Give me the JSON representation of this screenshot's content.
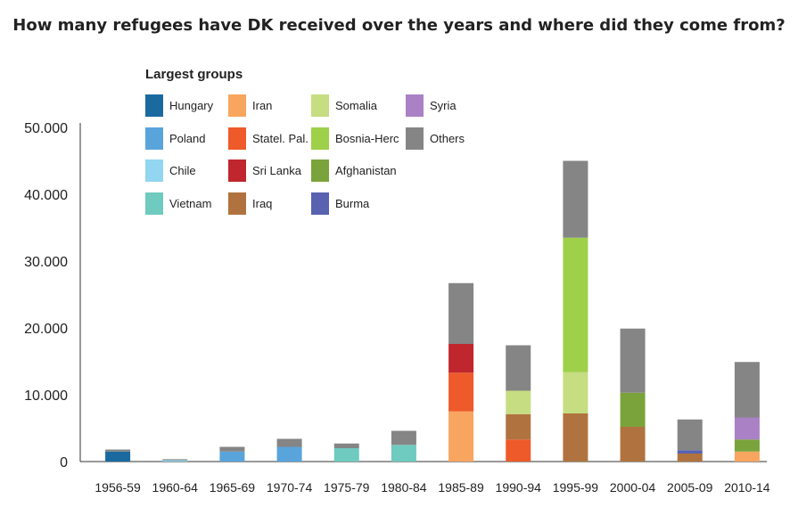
{
  "title": "How many refugees have DK received over the years and where did they come from?",
  "chart_data": {
    "type": "bar",
    "stacked": true,
    "categories": [
      "1956-59",
      "1960-64",
      "1965-69",
      "1970-74",
      "1975-79",
      "1980-84",
      "1985-89",
      "1990-94",
      "1995-99",
      "2000-04",
      "2005-09",
      "2010-14"
    ],
    "y_ticks": [
      "0",
      "10.000",
      "20.000",
      "30.000",
      "40.000",
      "50.000"
    ],
    "ylim": [
      0,
      50000
    ],
    "legend_title": "Largest groups",
    "series": [
      {
        "name": "Hungary",
        "color": "#1a6aa0",
        "values": [
          1500,
          0,
          0,
          0,
          0,
          0,
          0,
          0,
          0,
          0,
          0,
          0
        ]
      },
      {
        "name": "Poland",
        "color": "#5aa4dc",
        "values": [
          0,
          0,
          1500,
          2200,
          0,
          0,
          0,
          0,
          0,
          0,
          0,
          0
        ]
      },
      {
        "name": "Chile",
        "color": "#92d6f0",
        "values": [
          0,
          200,
          0,
          0,
          0,
          0,
          0,
          0,
          0,
          0,
          0,
          0
        ]
      },
      {
        "name": "Vietnam",
        "color": "#6fcabf",
        "values": [
          0,
          0,
          0,
          0,
          2000,
          2500,
          0,
          0,
          0,
          0,
          0,
          0
        ]
      },
      {
        "name": "Iran",
        "color": "#f8a55f",
        "values": [
          0,
          0,
          0,
          0,
          0,
          0,
          7500,
          0,
          0,
          0,
          0,
          1500
        ]
      },
      {
        "name": "Statel. Pal.",
        "color": "#ee5a2a",
        "values": [
          0,
          0,
          0,
          0,
          0,
          0,
          5800,
          3300,
          0,
          0,
          0,
          0
        ]
      },
      {
        "name": "Sri Lanka",
        "color": "#c0262d",
        "values": [
          0,
          0,
          0,
          0,
          0,
          0,
          4300,
          0,
          0,
          0,
          0,
          0
        ]
      },
      {
        "name": "Iraq",
        "color": "#b0733f",
        "values": [
          0,
          0,
          0,
          0,
          0,
          0,
          0,
          3800,
          7200,
          5200,
          1200,
          0
        ]
      },
      {
        "name": "Somalia",
        "color": "#c6dd82",
        "values": [
          0,
          0,
          0,
          0,
          0,
          0,
          0,
          3500,
          6200,
          0,
          0,
          0
        ]
      },
      {
        "name": "Bosnia-Herc",
        "color": "#9fd04a",
        "values": [
          0,
          0,
          0,
          0,
          0,
          0,
          0,
          0,
          20100,
          0,
          0,
          0
        ]
      },
      {
        "name": "Afghanistan",
        "color": "#7aa33c",
        "values": [
          0,
          0,
          0,
          0,
          0,
          0,
          0,
          0,
          0,
          5100,
          0,
          1800
        ]
      },
      {
        "name": "Burma",
        "color": "#5862b0",
        "values": [
          0,
          0,
          0,
          0,
          0,
          0,
          0,
          0,
          0,
          0,
          500,
          0
        ]
      },
      {
        "name": "Syria",
        "color": "#a981c4",
        "values": [
          0,
          0,
          0,
          0,
          0,
          0,
          0,
          0,
          0,
          0,
          0,
          3300
        ]
      },
      {
        "name": "Others",
        "color": "#858585",
        "values": [
          300,
          150,
          700,
          1200,
          700,
          2100,
          9100,
          6800,
          11500,
          9600,
          4600,
          8300
        ]
      }
    ]
  }
}
